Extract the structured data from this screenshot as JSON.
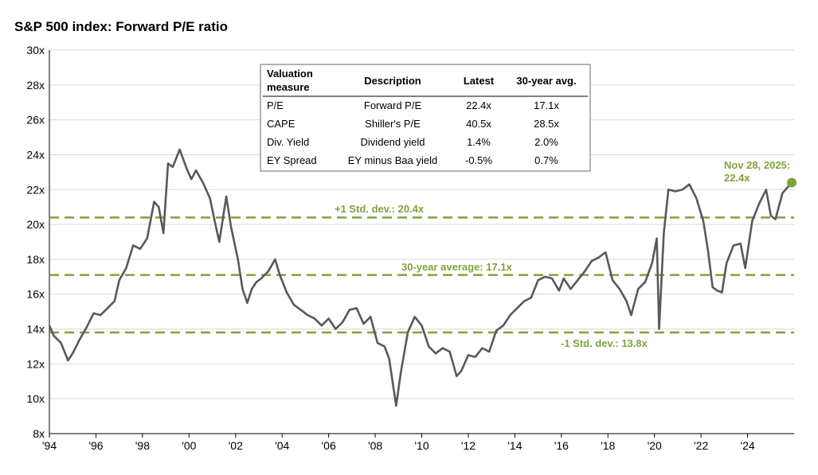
{
  "title": "S&P 500 index: Forward P/E ratio",
  "colors": {
    "line": "#595959",
    "accent": "#7fa33b",
    "grid": "#d9d9d9"
  },
  "annotations": {
    "plus_std": "+1 Std. dev.: 20.4x",
    "avg": "30-year average: 17.1x",
    "minus_std": "-1 Std. dev.: 13.8x",
    "latest_date": "Nov 28, 2025:",
    "latest_value": "22.4x"
  },
  "table": {
    "headers": [
      "Valuation measure",
      "Description",
      "Latest",
      "30-year avg."
    ],
    "rows": [
      [
        "P/E",
        "Forward P/E",
        "22.4x",
        "17.1x"
      ],
      [
        "CAPE",
        "Shiller's P/E",
        "40.5x",
        "28.5x"
      ],
      [
        "Div. Yield",
        "Dividend yield",
        "1.4%",
        "2.0%"
      ],
      [
        "EY Spread",
        "EY minus Baa yield",
        "-0.5%",
        "0.7%"
      ]
    ]
  },
  "chart_data": {
    "type": "line",
    "title": "S&P 500 index: Forward P/E ratio",
    "xlabel": "",
    "ylabel": "",
    "xlim": [
      1994,
      2026
    ],
    "ylim": [
      8,
      30
    ],
    "grid": true,
    "x_ticks": [
      "'94",
      "'96",
      "'98",
      "'00",
      "'02",
      "'04",
      "'06",
      "'08",
      "'10",
      "'12",
      "'14",
      "'16",
      "'18",
      "'20",
      "'22",
      "'24"
    ],
    "y_ticks": [
      "8x",
      "10x",
      "12x",
      "14x",
      "16x",
      "18x",
      "20x",
      "22x",
      "24x",
      "26x",
      "28x",
      "30x"
    ],
    "reference_lines": [
      {
        "label": "+1 Std. dev.: 20.4x",
        "value": 20.4
      },
      {
        "label": "30-year average: 17.1x",
        "value": 17.1
      },
      {
        "label": "-1 Std. dev.: 13.8x",
        "value": 13.8
      }
    ],
    "series": [
      {
        "x": [
          1994.0,
          1994.2,
          1994.5,
          1994.8,
          1995.0,
          1995.3,
          1995.6,
          1995.9,
          1996.2,
          1996.5,
          1996.8,
          1997.0,
          1997.3,
          1997.6,
          1997.9,
          1998.2,
          1998.5,
          1998.7,
          1998.9,
          1999.1,
          1999.3,
          1999.6,
          1999.9,
          2000.1,
          2000.3,
          2000.6,
          2000.9,
          2001.1,
          2001.3,
          2001.6,
          2001.8,
          2002.1,
          2002.3,
          2002.5,
          2002.7,
          2002.9,
          2003.1,
          2003.4,
          2003.7,
          2003.9,
          2004.2,
          2004.5,
          2004.8,
          2005.1,
          2005.4,
          2005.7,
          2006.0,
          2006.3,
          2006.6,
          2006.9,
          2007.2,
          2007.5,
          2007.8,
          2008.1,
          2008.4,
          2008.6,
          2008.8,
          2008.9,
          2009.1,
          2009.4,
          2009.7,
          2010.0,
          2010.3,
          2010.6,
          2010.9,
          2011.2,
          2011.5,
          2011.7,
          2012.0,
          2012.3,
          2012.6,
          2012.9,
          2013.2,
          2013.5,
          2013.8,
          2014.1,
          2014.4,
          2014.7,
          2015.0,
          2015.3,
          2015.6,
          2015.9,
          2016.1,
          2016.4,
          2016.7,
          2017.0,
          2017.3,
          2017.6,
          2017.9,
          2018.2,
          2018.5,
          2018.8,
          2019.0,
          2019.3,
          2019.6,
          2019.9,
          2020.1,
          2020.2,
          2020.4,
          2020.6,
          2020.9,
          2021.2,
          2021.5,
          2021.8,
          2022.1,
          2022.3,
          2022.5,
          2022.7,
          2022.9,
          2023.1,
          2023.4,
          2023.7,
          2023.9,
          2024.2,
          2024.5,
          2024.8,
          2025.0,
          2025.2,
          2025.5,
          2025.9
        ],
        "y": [
          14.2,
          13.6,
          13.2,
          12.2,
          12.6,
          13.4,
          14.1,
          14.9,
          14.8,
          15.2,
          15.6,
          16.8,
          17.5,
          18.8,
          18.6,
          19.2,
          21.3,
          21.0,
          19.5,
          23.5,
          23.3,
          24.3,
          23.2,
          22.6,
          23.1,
          22.4,
          21.5,
          20.2,
          19.0,
          21.6,
          19.9,
          18.0,
          16.3,
          15.5,
          16.3,
          16.7,
          16.9,
          17.3,
          18.0,
          17.1,
          16.1,
          15.4,
          15.1,
          14.8,
          14.6,
          14.2,
          14.6,
          14.0,
          14.4,
          15.1,
          15.2,
          14.3,
          14.7,
          13.2,
          13.0,
          12.3,
          10.5,
          9.6,
          11.5,
          13.8,
          14.7,
          14.2,
          13.0,
          12.6,
          12.9,
          12.7,
          11.3,
          11.6,
          12.5,
          12.4,
          12.9,
          12.7,
          13.9,
          14.2,
          14.8,
          15.2,
          15.6,
          15.8,
          16.8,
          17.0,
          16.9,
          16.2,
          16.9,
          16.3,
          16.8,
          17.3,
          17.9,
          18.1,
          18.4,
          16.8,
          16.3,
          15.6,
          14.8,
          16.3,
          16.7,
          17.8,
          19.2,
          14.0,
          19.5,
          22.0,
          21.9,
          22.0,
          22.3,
          21.5,
          20.2,
          18.5,
          16.4,
          16.2,
          16.1,
          17.8,
          18.8,
          18.9,
          17.5,
          20.2,
          21.2,
          22.0,
          20.5,
          20.3,
          21.8,
          22.4
        ]
      }
    ]
  }
}
